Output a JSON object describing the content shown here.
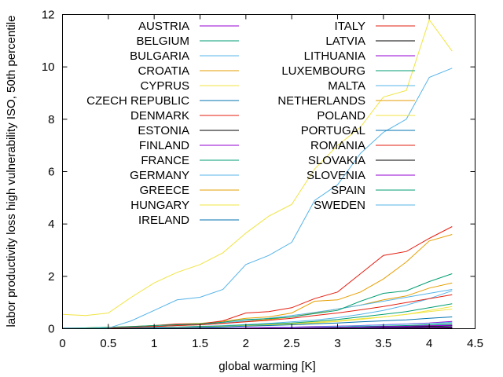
{
  "chart_data": {
    "type": "line",
    "title": "",
    "xlabel": "global warming [K]",
    "ylabel": "labor productivity loss high vulnerability ISO, 50th percentile",
    "xlim": [
      0,
      4.5
    ],
    "ylim": [
      0,
      12
    ],
    "xticks": [
      0,
      0.5,
      1,
      1.5,
      2,
      2.5,
      3,
      3.5,
      4,
      4.5
    ],
    "xtick_labels": [
      "0",
      "0.5",
      "1",
      "1.5",
      "2",
      "2.5",
      "3",
      "3.5",
      "4",
      "4.5"
    ],
    "yticks": [
      0,
      2,
      4,
      6,
      8,
      10,
      12
    ],
    "ytick_labels": [
      "0",
      "2",
      "4",
      "6",
      "8",
      "10",
      "12"
    ],
    "grid": false,
    "legend_placement": "top (two columns)",
    "x": [
      0,
      0.25,
      0.5,
      0.75,
      1,
      1.25,
      1.5,
      1.75,
      2,
      2.25,
      2.5,
      2.75,
      3,
      3.25,
      3.5,
      3.75,
      4,
      4.25
    ],
    "series": [
      {
        "name": "AUSTRIA",
        "color": "#9400d3",
        "values": [
          0,
          0,
          0,
          0.01,
          0.01,
          0.02,
          0.02,
          0.03,
          0.04,
          0.05,
          0.06,
          0.08,
          0.1,
          0.12,
          0.15,
          0.18,
          0.22,
          0.28
        ]
      },
      {
        "name": "BELGIUM",
        "color": "#009e73",
        "values": [
          0,
          0,
          0,
          0,
          0.01,
          0.01,
          0.01,
          0.02,
          0.02,
          0.03,
          0.04,
          0.05,
          0.06,
          0.08,
          0.1,
          0.12,
          0.15,
          0.2
        ]
      },
      {
        "name": "BULGARIA",
        "color": "#56b4e9",
        "values": [
          0.01,
          0.01,
          0.02,
          0.03,
          0.05,
          0.07,
          0.09,
          0.12,
          0.16,
          0.2,
          0.26,
          0.33,
          0.42,
          0.55,
          0.7,
          0.9,
          1.15,
          1.45
        ]
      },
      {
        "name": "CROATIA",
        "color": "#e69f00",
        "values": [
          0.01,
          0.02,
          0.03,
          0.05,
          0.08,
          0.12,
          0.15,
          0.2,
          0.28,
          0.35,
          0.45,
          0.6,
          0.75,
          0.9,
          1.1,
          1.25,
          1.55,
          1.75
        ]
      },
      {
        "name": "CYPRUS",
        "color": "#f0e442",
        "values": [
          0.01,
          0.01,
          0.02,
          0.03,
          0.04,
          0.06,
          0.08,
          0.1,
          0.13,
          0.16,
          0.2,
          0.25,
          0.3,
          0.38,
          0.45,
          0.55,
          0.65,
          0.75
        ]
      },
      {
        "name": "CZECH REPUBLIC",
        "color": "#0072b2",
        "values": [
          0,
          0,
          0,
          0,
          0,
          0.01,
          0.01,
          0.01,
          0.02,
          0.02,
          0.03,
          0.04,
          0.05,
          0.06,
          0.08,
          0.1,
          0.12,
          0.15
        ]
      },
      {
        "name": "DENMARK",
        "color": "#e51e10",
        "values": [
          0,
          0,
          0,
          0,
          0,
          0,
          0,
          0.01,
          0.01,
          0.01,
          0.01,
          0.02,
          0.02,
          0.03,
          0.03,
          0.04,
          0.05,
          0.06
        ]
      },
      {
        "name": "ESTONIA",
        "color": "#000000",
        "values": [
          0,
          0,
          0,
          0,
          0,
          0,
          0,
          0,
          0,
          0,
          0,
          0.01,
          0.01,
          0.01,
          0.01,
          0.02,
          0.02,
          0.03
        ]
      },
      {
        "name": "FINLAND",
        "color": "#9400d3",
        "values": [
          0,
          0,
          0,
          0,
          0,
          0,
          0,
          0,
          0,
          0,
          0,
          0,
          0.01,
          0.01,
          0.01,
          0.01,
          0.02,
          0.02
        ]
      },
      {
        "name": "FRANCE",
        "color": "#009e73",
        "values": [
          0,
          0.01,
          0.01,
          0.02,
          0.04,
          0.06,
          0.08,
          0.1,
          0.14,
          0.18,
          0.22,
          0.28,
          0.35,
          0.45,
          0.55,
          0.65,
          0.8,
          0.95
        ]
      },
      {
        "name": "GERMANY",
        "color": "#56b4e9",
        "values": [
          0,
          0,
          0,
          0,
          0.01,
          0.01,
          0.02,
          0.02,
          0.03,
          0.04,
          0.05,
          0.07,
          0.09,
          0.11,
          0.14,
          0.17,
          0.2,
          0.25
        ]
      },
      {
        "name": "GREECE",
        "color": "#e69f00",
        "values": [
          0.02,
          0.03,
          0.05,
          0.08,
          0.12,
          0.18,
          0.2,
          0.28,
          0.4,
          0.45,
          0.6,
          1.05,
          1.1,
          1.4,
          1.9,
          2.55,
          3.35,
          3.6
        ]
      },
      {
        "name": "HUNGARY",
        "color": "#f0e442",
        "values": [
          0,
          0.01,
          0.01,
          0.02,
          0.03,
          0.05,
          0.06,
          0.08,
          0.11,
          0.14,
          0.17,
          0.22,
          0.28,
          0.35,
          0.45,
          0.55,
          0.7,
          0.85
        ]
      },
      {
        "name": "IRELAND",
        "color": "#0072b2",
        "values": [
          0,
          0,
          0,
          0,
          0,
          0,
          0,
          0,
          0,
          0,
          0,
          0,
          0,
          0.01,
          0.01,
          0.01,
          0.01,
          0.02
        ]
      },
      {
        "name": "ITALY",
        "color": "#e51e10",
        "values": [
          0.02,
          0.03,
          0.04,
          0.07,
          0.12,
          0.18,
          0.18,
          0.3,
          0.6,
          0.65,
          0.8,
          1.15,
          1.4,
          2.1,
          2.8,
          2.95,
          3.45,
          3.9
        ]
      },
      {
        "name": "LATVIA",
        "color": "#000000",
        "values": [
          0,
          0,
          0,
          0,
          0,
          0,
          0,
          0,
          0,
          0,
          0,
          0.01,
          0.01,
          0.01,
          0.01,
          0.02,
          0.02,
          0.03
        ]
      },
      {
        "name": "LITHUANIA",
        "color": "#9400d3",
        "values": [
          0,
          0,
          0,
          0,
          0,
          0,
          0,
          0,
          0.01,
          0.01,
          0.01,
          0.01,
          0.02,
          0.02,
          0.03,
          0.04,
          0.05,
          0.06
        ]
      },
      {
        "name": "LUXEMBOURG",
        "color": "#009e73",
        "values": [
          0,
          0,
          0,
          0,
          0,
          0,
          0,
          0.01,
          0.01,
          0.01,
          0.02,
          0.02,
          0.03,
          0.04,
          0.05,
          0.06,
          0.08,
          0.1
        ]
      },
      {
        "name": "MALTA",
        "color": "#56b4e9",
        "values": [
          0.01,
          0.02,
          0.03,
          0.05,
          0.08,
          0.12,
          0.16,
          0.22,
          0.3,
          0.4,
          0.5,
          0.62,
          0.75,
          0.9,
          1.05,
          1.2,
          1.35,
          1.5
        ]
      },
      {
        "name": "NETHERLANDS",
        "color": "#e69f00",
        "values": [
          0,
          0,
          0,
          0,
          0,
          0.01,
          0.01,
          0.01,
          0.02,
          0.02,
          0.03,
          0.04,
          0.05,
          0.06,
          0.07,
          0.09,
          0.11,
          0.13
        ]
      },
      {
        "name": "POLAND",
        "color": "#f0e442",
        "values": [
          0.55,
          0.5,
          0.6,
          1.2,
          1.75,
          2.15,
          2.45,
          2.9,
          3.65,
          4.3,
          4.75,
          6.1,
          7.0,
          7.7,
          8.85,
          9.1,
          11.8,
          10.6
        ]
      },
      {
        "name": "PORTUGAL",
        "color": "#0072b2",
        "values": [
          0,
          0.01,
          0.01,
          0.02,
          0.03,
          0.04,
          0.05,
          0.07,
          0.1,
          0.12,
          0.15,
          0.19,
          0.22,
          0.26,
          0.3,
          0.34,
          0.4,
          0.45
        ]
      },
      {
        "name": "ROMANIA",
        "color": "#e51e10",
        "values": [
          0.01,
          0.02,
          0.03,
          0.05,
          0.08,
          0.12,
          0.15,
          0.2,
          0.26,
          0.32,
          0.4,
          0.5,
          0.6,
          0.72,
          0.85,
          1.0,
          1.15,
          1.3
        ]
      },
      {
        "name": "SLOVAKIA",
        "color": "#000000",
        "values": [
          0,
          0,
          0,
          0,
          0,
          0,
          0.01,
          0.01,
          0.01,
          0.02,
          0.02,
          0.03,
          0.04,
          0.05,
          0.06,
          0.07,
          0.09,
          0.11
        ]
      },
      {
        "name": "SLOVENIA",
        "color": "#9400d3",
        "values": [
          0,
          0,
          0,
          0,
          0,
          0.01,
          0.01,
          0.01,
          0.02,
          0.02,
          0.03,
          0.04,
          0.05,
          0.06,
          0.08,
          0.09,
          0.11,
          0.13
        ]
      },
      {
        "name": "SPAIN",
        "color": "#009e73",
        "values": [
          0.02,
          0.03,
          0.05,
          0.08,
          0.12,
          0.15,
          0.18,
          0.25,
          0.35,
          0.38,
          0.45,
          0.58,
          0.7,
          1.05,
          1.35,
          1.45,
          1.8,
          2.1
        ]
      },
      {
        "name": "SWEDEN",
        "color": "#56b4e9",
        "values": [
          0.02,
          0.01,
          0.02,
          0.3,
          0.7,
          1.1,
          1.2,
          1.5,
          2.45,
          2.8,
          3.3,
          4.9,
          5.5,
          6.7,
          7.5,
          8.0,
          9.6,
          9.95
        ]
      }
    ]
  }
}
